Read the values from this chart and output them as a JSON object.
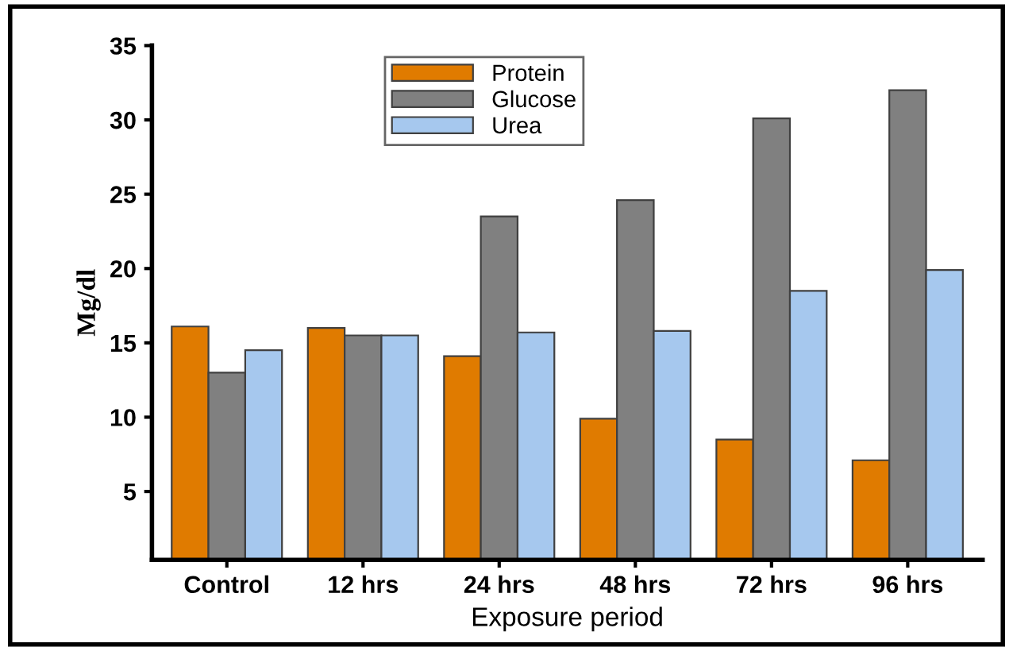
{
  "chart_data": {
    "type": "bar",
    "xlabel": "Exposure period",
    "ylabel": "Mg/dl",
    "categories": [
      "Control",
      "12 hrs",
      "24 hrs",
      "48 hrs",
      "72 hrs",
      "96 hrs"
    ],
    "series": [
      {
        "name": "Protein",
        "color": "#e07b00",
        "values": [
          16.1,
          16.0,
          14.1,
          9.9,
          8.5,
          7.1
        ]
      },
      {
        "name": "Glucose",
        "color": "#808080",
        "values": [
          13.0,
          15.5,
          23.5,
          24.6,
          30.1,
          32.0
        ]
      },
      {
        "name": "Urea",
        "color": "#a6c8ee",
        "values": [
          14.5,
          15.5,
          15.7,
          15.8,
          18.5,
          19.9
        ]
      }
    ],
    "ylim": [
      0.4,
      35
    ],
    "yticks": [
      5,
      10,
      15,
      20,
      25,
      30,
      35
    ],
    "grid": false,
    "legend": "top"
  }
}
